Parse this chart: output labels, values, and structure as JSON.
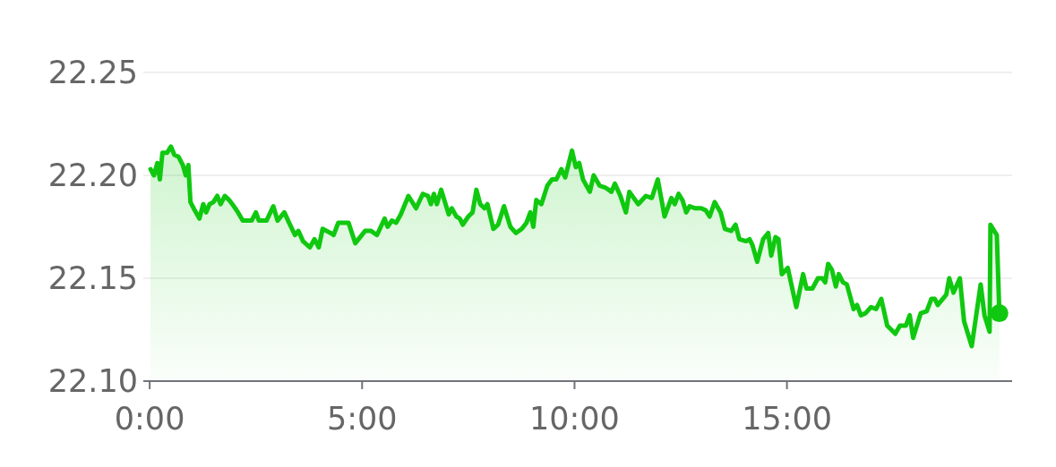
{
  "chart_data": {
    "type": "area",
    "series": [
      {
        "color": "#10c810",
        "x": [
          0.02,
          0.1,
          0.18,
          0.24,
          0.3,
          0.41,
          0.5,
          0.58,
          0.68,
          0.78,
          0.85,
          0.91,
          0.96,
          1.06,
          1.17,
          1.26,
          1.33,
          1.41,
          1.5,
          1.59,
          1.67,
          1.77,
          1.87,
          1.98,
          2.08,
          2.19,
          2.4,
          2.5,
          2.57,
          2.75,
          2.91,
          3.01,
          3.17,
          3.28,
          3.42,
          3.5,
          3.61,
          3.77,
          3.88,
          3.98,
          4.07,
          4.26,
          4.33,
          4.44,
          4.68,
          4.84,
          5.07,
          5.21,
          5.35,
          5.53,
          5.6,
          5.7,
          5.8,
          5.91,
          6.09,
          6.27,
          6.43,
          6.55,
          6.62,
          6.69,
          6.76,
          6.86,
          7.04,
          7.11,
          7.22,
          7.3,
          7.37,
          7.5,
          7.6,
          7.69,
          7.78,
          7.88,
          7.95,
          8.09,
          8.2,
          8.34,
          8.49,
          8.62,
          8.76,
          8.87,
          8.96,
          9.03,
          9.1,
          9.22,
          9.36,
          9.47,
          9.57,
          9.69,
          9.78,
          9.94,
          10.03,
          10.11,
          10.2,
          10.36,
          10.45,
          10.59,
          10.73,
          10.87,
          10.95,
          11.08,
          11.21,
          11.29,
          11.5,
          11.68,
          11.82,
          11.96,
          12.12,
          12.28,
          12.36,
          12.45,
          12.54,
          12.63,
          12.71,
          12.84,
          12.98,
          13.09,
          13.18,
          13.3,
          13.44,
          13.54,
          13.69,
          13.79,
          13.88,
          14.04,
          14.12,
          14.19,
          14.3,
          14.44,
          14.56,
          14.63,
          14.73,
          14.8,
          14.88,
          15.02,
          15.22,
          15.38,
          15.46,
          15.6,
          15.73,
          15.83,
          15.9,
          15.97,
          16.06,
          16.15,
          16.22,
          16.32,
          16.41,
          16.57,
          16.65,
          16.74,
          16.85,
          16.98,
          17.1,
          17.22,
          17.36,
          17.55,
          17.66,
          17.8,
          17.89,
          17.97,
          18.15,
          18.29,
          18.4,
          18.48,
          18.55,
          18.75,
          18.82,
          18.92,
          19.07,
          19.17,
          19.35,
          19.56,
          19.65,
          19.77,
          19.79,
          19.94,
          20.0
        ],
        "values": [
          22.203,
          22.2,
          22.206,
          22.198,
          22.211,
          22.211,
          22.214,
          22.21,
          22.209,
          22.205,
          22.2,
          22.205,
          22.187,
          22.183,
          22.179,
          22.186,
          22.182,
          22.186,
          22.187,
          22.19,
          22.186,
          22.19,
          22.188,
          22.185,
          22.182,
          22.178,
          22.178,
          22.182,
          22.178,
          22.178,
          22.185,
          22.178,
          22.182,
          22.177,
          22.171,
          22.173,
          22.168,
          22.165,
          22.169,
          22.165,
          22.174,
          22.172,
          22.171,
          22.177,
          22.177,
          22.167,
          22.173,
          22.173,
          22.171,
          22.179,
          22.175,
          22.178,
          22.177,
          22.181,
          22.19,
          22.184,
          22.191,
          22.19,
          22.186,
          22.191,
          22.186,
          22.193,
          22.181,
          22.184,
          22.18,
          22.179,
          22.176,
          22.18,
          22.182,
          22.193,
          22.186,
          22.184,
          22.186,
          22.174,
          22.176,
          22.185,
          22.175,
          22.172,
          22.174,
          22.177,
          22.182,
          22.175,
          22.188,
          22.186,
          22.195,
          22.198,
          22.198,
          22.203,
          22.199,
          22.212,
          22.204,
          22.206,
          22.198,
          22.192,
          22.2,
          22.195,
          22.194,
          22.192,
          22.196,
          22.19,
          22.182,
          22.192,
          22.186,
          22.19,
          22.189,
          22.198,
          22.18,
          22.189,
          22.186,
          22.191,
          22.188,
          22.182,
          22.185,
          22.184,
          22.184,
          22.183,
          22.18,
          22.187,
          22.182,
          22.174,
          22.173,
          22.176,
          22.169,
          22.168,
          22.169,
          22.166,
          22.158,
          22.169,
          22.172,
          22.161,
          22.17,
          22.169,
          22.152,
          22.155,
          22.136,
          22.152,
          22.145,
          22.145,
          22.15,
          22.15,
          22.148,
          22.157,
          22.154,
          22.146,
          22.152,
          22.148,
          22.147,
          22.135,
          22.137,
          22.132,
          22.133,
          22.136,
          22.135,
          22.14,
          22.127,
          22.123,
          22.127,
          22.127,
          22.132,
          22.121,
          22.133,
          22.134,
          22.14,
          22.14,
          22.137,
          22.142,
          22.15,
          22.143,
          22.15,
          22.129,
          22.117,
          22.147,
          22.132,
          22.124,
          22.176,
          22.171,
          22.133
        ]
      },
      {
        "type": "scatter",
        "color": "#10c810",
        "x": [
          20.0
        ],
        "values": [
          22.133
        ]
      }
    ],
    "xlim": [
      -0.15,
      20.3
    ],
    "xticks": [
      {
        "value": 0,
        "label": "0:00"
      },
      {
        "value": 5,
        "label": "5:00"
      },
      {
        "value": 10,
        "label": "10:00"
      },
      {
        "value": 15,
        "label": "15:00"
      }
    ],
    "ylim": [
      22.1,
      22.25
    ],
    "yticks": [
      {
        "value": 22.1,
        "label": "22.10"
      },
      22.15,
      {
        "value": 22.2,
        "label": "22.20"
      },
      22.25
    ],
    "grid": "y"
  }
}
